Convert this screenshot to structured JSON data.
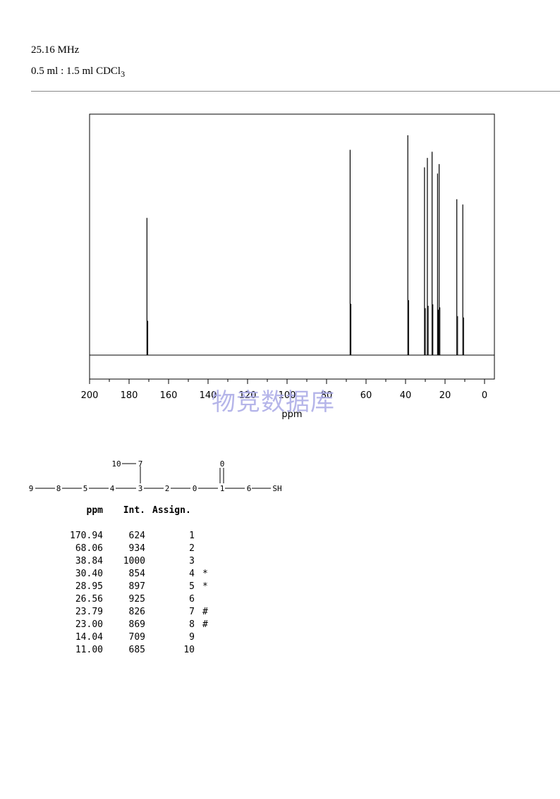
{
  "header": {
    "frequency": "25.16 MHz",
    "solvent_text": "0.5 ml : 1.5 ml CDCl",
    "solvent_sub": "3"
  },
  "watermark": "物竞数据库",
  "chart_data": {
    "type": "line",
    "title": "",
    "xlabel": "ppm",
    "ylabel": "",
    "xlim": [
      200,
      0
    ],
    "x_reversed": true,
    "ylim": [
      0,
      1000
    ],
    "grid": false,
    "x_ticks": [
      200,
      180,
      160,
      140,
      120,
      100,
      80,
      60,
      40,
      20,
      0
    ],
    "x_tick_labels": [
      "200",
      "180",
      "160",
      "140",
      "120",
      "100",
      "80",
      "60",
      "40",
      "20",
      "0"
    ],
    "peaks": [
      {
        "ppm": 170.94,
        "intensity": 624
      },
      {
        "ppm": 68.06,
        "intensity": 934
      },
      {
        "ppm": 38.84,
        "intensity": 1000
      },
      {
        "ppm": 30.4,
        "intensity": 854
      },
      {
        "ppm": 28.95,
        "intensity": 897
      },
      {
        "ppm": 26.56,
        "intensity": 925
      },
      {
        "ppm": 23.79,
        "intensity": 826
      },
      {
        "ppm": 23.0,
        "intensity": 869
      },
      {
        "ppm": 14.04,
        "intensity": 709
      },
      {
        "ppm": 11.0,
        "intensity": 685
      }
    ]
  },
  "structure": {
    "atoms": [
      "10",
      "7",
      "0",
      "9",
      "8",
      "5",
      "4",
      "3",
      "2",
      "0",
      "1",
      "6",
      "SH"
    ]
  },
  "peak_table": {
    "headers": [
      "ppm",
      "Int.",
      "Assign."
    ],
    "rows": [
      {
        "ppm": "170.94",
        "int": "624",
        "assign": "1",
        "mark": ""
      },
      {
        "ppm": "68.06",
        "int": "934",
        "assign": "2",
        "mark": ""
      },
      {
        "ppm": "38.84",
        "int": "1000",
        "assign": "3",
        "mark": ""
      },
      {
        "ppm": "30.40",
        "int": "854",
        "assign": "4",
        "mark": "*"
      },
      {
        "ppm": "28.95",
        "int": "897",
        "assign": "5",
        "mark": "*"
      },
      {
        "ppm": "26.56",
        "int": "925",
        "assign": "6",
        "mark": ""
      },
      {
        "ppm": "23.79",
        "int": "826",
        "assign": "7",
        "mark": "#"
      },
      {
        "ppm": "23.00",
        "int": "869",
        "assign": "8",
        "mark": "#"
      },
      {
        "ppm": "14.04",
        "int": "709",
        "assign": "9",
        "mark": ""
      },
      {
        "ppm": "11.00",
        "int": "685",
        "assign": "10",
        "mark": ""
      }
    ]
  }
}
